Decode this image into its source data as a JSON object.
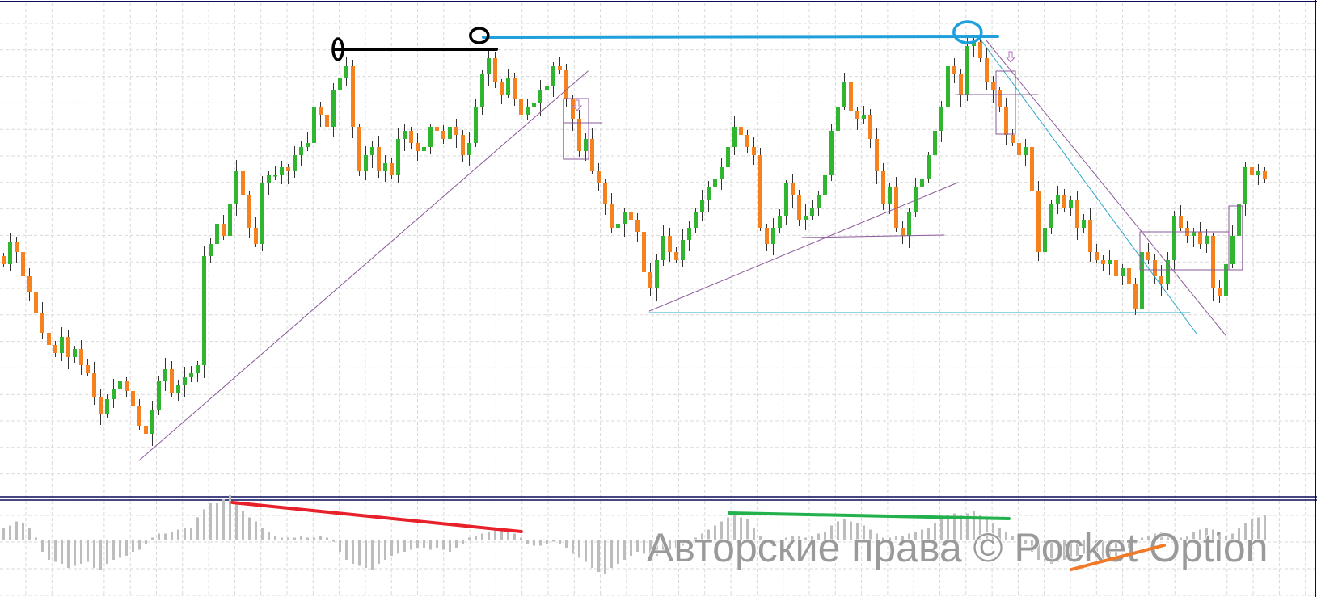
{
  "chart_data": {
    "type": "candlestick",
    "title": "",
    "xlabel": "",
    "ylabel": "",
    "grid": true,
    "ylim": [
      0,
      612
    ],
    "colors": {
      "up": "#2fb52f",
      "down": "#f5821f",
      "grid": "#d9d9d9",
      "frame": "#0a0a5a",
      "histogram": "#bdbdbd"
    },
    "closes": [
      285,
      312,
      300,
      270,
      250,
      225,
      200,
      185,
      175,
      195,
      170,
      180,
      160,
      150,
      120,
      100,
      118,
      130,
      140,
      128,
      110,
      85,
      75,
      105,
      140,
      155,
      125,
      135,
      145,
      150,
      160,
      295,
      310,
      335,
      320,
      360,
      400,
      370,
      330,
      310,
      385,
      395,
      395,
      405,
      400,
      420,
      430,
      435,
      480,
      470,
      455,
      500,
      515,
      530,
      455,
      400,
      420,
      430,
      400,
      410,
      395,
      440,
      450,
      435,
      425,
      430,
      455,
      450,
      440,
      455,
      445,
      420,
      435,
      480,
      520,
      540,
      510,
      495,
      515,
      490,
      470,
      480,
      485,
      500,
      505,
      530,
      525,
      490,
      465,
      425,
      440,
      400,
      385,
      360,
      330,
      335,
      350,
      340,
      325,
      275,
      255,
      290,
      320,
      300,
      290,
      315,
      330,
      350,
      365,
      380,
      390,
      405,
      430,
      455,
      445,
      430,
      420,
      330,
      310,
      330,
      345,
      385,
      370,
      340,
      345,
      355,
      370,
      395,
      450,
      480,
      510,
      475,
      465,
      470,
      440,
      400,
      360,
      380,
      330,
      320,
      350,
      380,
      390,
      420,
      450,
      480,
      530,
      520,
      495,
      555,
      560,
      540,
      510,
      500,
      480,
      445,
      435,
      420,
      430,
      375,
      300,
      330,
      360,
      370,
      355,
      365,
      330,
      340,
      300,
      290,
      285,
      290,
      270,
      280,
      260,
      230,
      300,
      290,
      270,
      260,
      290,
      345,
      330,
      320,
      325,
      310,
      320,
      255,
      245,
      285,
      320,
      360,
      405,
      395,
      400,
      390
    ],
    "histogram": [
      0.3,
      0.35,
      0.45,
      0.4,
      0.3,
      0.05,
      -0.3,
      -0.5,
      -0.55,
      -0.6,
      -0.7,
      -0.65,
      -0.6,
      -0.55,
      -0.7,
      -0.75,
      -0.6,
      -0.5,
      -0.45,
      -0.4,
      -0.3,
      -0.25,
      -0.1,
      0.05,
      0.15,
      0.15,
      0.2,
      0.25,
      0.3,
      0.3,
      0.55,
      0.75,
      0.9,
      0.9,
      1.0,
      1.1,
      0.95,
      0.7,
      0.55,
      0.45,
      0.3,
      0.2,
      0.1,
      0.05,
      0.05,
      0.05,
      0.1,
      0.05,
      0.05,
      0.1,
      0.05,
      -0.05,
      -0.3,
      -0.5,
      -0.6,
      -0.65,
      -0.7,
      -0.75,
      -0.6,
      -0.5,
      -0.4,
      -0.35,
      -0.3,
      -0.25,
      -0.2,
      -0.2,
      -0.25,
      -0.2,
      -0.25,
      -0.3,
      -0.2,
      -0.1,
      0.05,
      0.1,
      0.15,
      0.2,
      0.25,
      0.25,
      0.2,
      0.15,
      0.05,
      -0.1,
      -0.15,
      -0.15,
      -0.1,
      -0.05,
      -0.1,
      -0.2,
      -0.35,
      -0.45,
      -0.55,
      -0.7,
      -0.8,
      -0.85,
      -0.7,
      -0.6,
      -0.5,
      -0.4,
      -0.3,
      -0.35,
      -0.45,
      -0.4,
      -0.3,
      -0.25,
      -0.2,
      -0.15,
      -0.1,
      0.05,
      0.15,
      0.25,
      0.35,
      0.45,
      0.55,
      0.6,
      0.55,
      0.5,
      0.3,
      0.1,
      -0.05,
      -0.1,
      -0.05,
      0.05,
      0.1,
      0.1,
      0.05,
      0.1,
      0.15,
      0.2,
      0.35,
      0.45,
      0.5,
      0.45,
      0.4,
      0.35,
      0.25,
      0.15,
      0.05,
      0.05,
      0.1,
      0.1,
      0.15,
      0.2,
      0.25,
      0.3,
      0.4,
      0.5,
      0.6,
      0.65,
      0.6,
      0.65,
      0.7,
      0.6,
      0.5,
      0.4,
      0.3,
      0.2,
      0.1,
      0.05,
      -0.1,
      -0.3,
      -0.5,
      -0.55,
      -0.6,
      -0.55,
      -0.5,
      -0.45,
      -0.4,
      -0.35,
      -0.4,
      -0.45,
      -0.5,
      -0.45,
      -0.4,
      -0.3,
      -0.2,
      -0.1,
      0.05,
      0.1,
      0.15,
      0.2,
      0.15,
      0.1,
      0.05,
      0.1,
      0.2,
      0.25,
      0.3,
      0.25,
      0.2,
      0.1,
      0.15,
      0.3,
      0.4,
      0.5,
      0.55,
      0.6
    ],
    "annotations": {
      "lines": [
        {
          "name": "black-resistance-line",
          "color": "#000000",
          "width": 4,
          "from": [
            51.25,
            551
          ],
          "to": [
            76.25,
            551
          ]
        },
        {
          "name": "blue-resistance-line",
          "color": "#1ea0dc",
          "width": 4,
          "from": [
            74.25,
            566
          ],
          "to": [
            153.75,
            567
          ]
        },
        {
          "name": "purple-trendline-1",
          "color": "#8a5a9a",
          "width": 1,
          "from": [
            21,
            42
          ],
          "to": [
            90.4,
            524
          ]
        },
        {
          "name": "purple-trendline-2",
          "color": "#8a5a9a",
          "width": 1,
          "from": [
            99.9,
            227
          ],
          "to": [
            147.6,
            386
          ]
        },
        {
          "name": "cyan-support-line",
          "color": "#2aa8c8",
          "width": 1,
          "from": [
            99.9,
            225
          ],
          "to": [
            183.5,
            225
          ]
        },
        {
          "name": "purple-level-1",
          "color": "#8a5a9a",
          "width": 1,
          "from": [
            123.5,
            318
          ],
          "to": [
            145.5,
            321
          ]
        },
        {
          "name": "cyan-trendline",
          "color": "#2aa8c8",
          "width": 1,
          "from": [
            150.75,
            567
          ],
          "to": [
            184.5,
            199
          ]
        },
        {
          "name": "purple-trendline-3",
          "color": "#8a5a9a",
          "width": 1,
          "from": [
            152,
            562
          ],
          "to": [
            189.1,
            196
          ]
        },
        {
          "name": "purple-level-2",
          "color": "#8a5a9a",
          "width": 1,
          "from": [
            147.25,
            495
          ],
          "to": [
            160,
            495
          ]
        },
        {
          "name": "purple-level-3",
          "color": "#8a5a9a",
          "width": 1,
          "from": [
            86.6,
            460
          ],
          "to": [
            92.6,
            460
          ]
        }
      ],
      "ellipses": [
        {
          "name": "black-ellipse-left",
          "color": "#000000",
          "center": [
            51.75,
            551
          ]
        },
        {
          "name": "black-ellipse-right",
          "color": "#000000",
          "center": [
            73.6,
            568
          ]
        },
        {
          "name": "blue-ellipse",
          "color": "#1ea0dc",
          "center": [
            149.1,
            572
          ]
        }
      ],
      "boxes": [
        {
          "name": "purple-box-1",
          "color": "#8a5a9a",
          "from": [
            86.6,
            490
          ],
          "to": [
            90.5,
            415
          ]
        },
        {
          "name": "purple-box-2",
          "color": "#8a5a9a",
          "from": [
            153.5,
            524
          ],
          "to": [
            156.5,
            446
          ]
        },
        {
          "name": "purple-box-3",
          "color": "#8a5a9a",
          "from": [
            175.75,
            325
          ],
          "to": [
            189.5,
            278
          ]
        },
        {
          "name": "purple-box-4",
          "color": "#8a5a9a",
          "from": [
            189.5,
            357
          ],
          "to": [
            191.6,
            278
          ]
        }
      ],
      "arrows": [
        {
          "name": "down-arrow-1",
          "color": "#b070c0",
          "at": [
            88.75,
            482
          ]
        },
        {
          "name": "down-arrow-2",
          "color": "#b070c0",
          "at": [
            155.75,
            542
          ]
        }
      ],
      "indicator_lines": [
        {
          "name": "red-divergence-line",
          "color": "#e8202a",
          "from": [
            35.4,
            0.92
          ],
          "to": [
            80.1,
            0.2
          ]
        },
        {
          "name": "green-divergence-line",
          "color": "#22b14c",
          "from": [
            112.25,
            0.66
          ],
          "to": [
            155.5,
            0.52
          ]
        },
        {
          "name": "orange-divergence-line",
          "color": "#f07a28",
          "from": [
            165.1,
            -0.74
          ],
          "to": [
            179.5,
            -0.14
          ]
        }
      ]
    }
  },
  "watermark": "Авторские права © Pocket Option"
}
